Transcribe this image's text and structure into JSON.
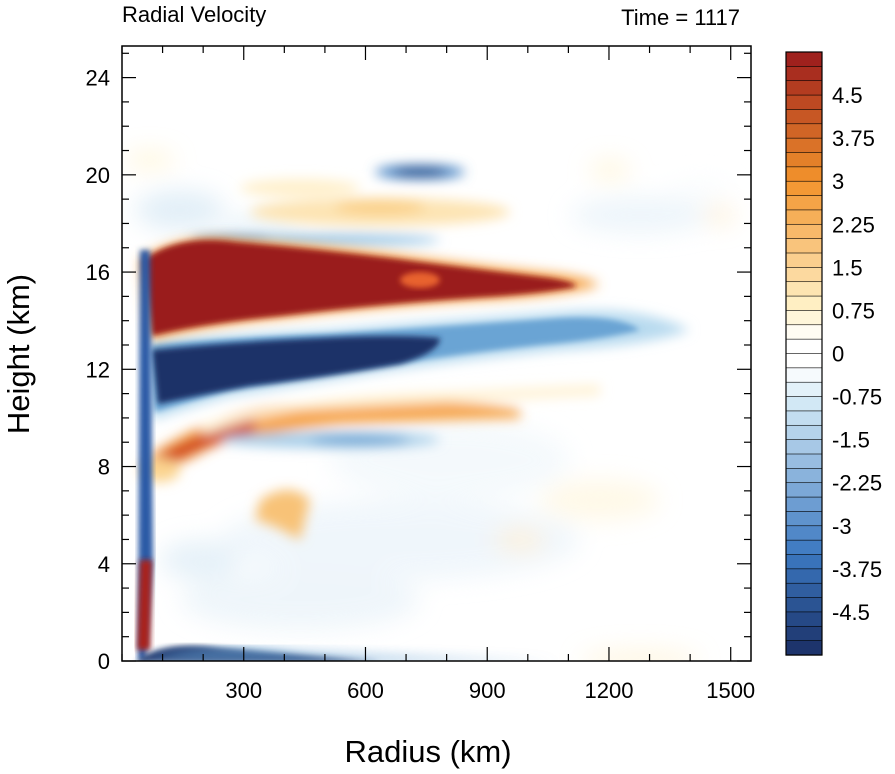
{
  "chart_data": {
    "type": "heatmap",
    "title_left": "Radial Velocity",
    "title_right": "Time = 1117",
    "xlabel": "Radius (km)",
    "ylabel": "Height (km)",
    "xlim": [
      0,
      1550
    ],
    "ylim": [
      0,
      25.3
    ],
    "x_ticks": [
      300,
      600,
      900,
      1200,
      1500
    ],
    "y_ticks": [
      0,
      4,
      8,
      12,
      16,
      20,
      24
    ],
    "colorbar": {
      "min": -5.25,
      "max": 5.25,
      "step": 0.25,
      "labels": [
        "4.5",
        "3.75",
        "3",
        "2.25",
        "1.5",
        "0.75",
        "0",
        "-0.75",
        "-1.5",
        "-2.25",
        "-3",
        "-3.75",
        "-4.5"
      ],
      "label_values": [
        4.5,
        3.75,
        3,
        2.25,
        1.5,
        0.75,
        0,
        -0.75,
        -1.5,
        -2.25,
        -3,
        -3.75,
        -4.5
      ],
      "colors": {
        "neg_dark": "#1b2f66",
        "neg_mid": "#3b78c0",
        "neg_light": "#d6ebf6",
        "zero": "#ffffff",
        "pos_light": "#fff2c8",
        "pos_mid": "#f3942c",
        "pos_dark": "#9a1a1c"
      }
    },
    "features": [
      {
        "sign": "positive",
        "desc": "strong outflow",
        "r_range": [
          40,
          1150
        ],
        "z_range": [
          13.5,
          17.3
        ],
        "peak": 5.25
      },
      {
        "sign": "negative",
        "desc": "inflow below outflow",
        "r_range": [
          60,
          1150
        ],
        "z_range": [
          11,
          13.8
        ],
        "peak": -5.25
      },
      {
        "sign": "positive",
        "desc": "mid-level outflow",
        "r_range": [
          60,
          800
        ],
        "z_range": [
          8,
          11
        ],
        "peak": 3.5
      },
      {
        "sign": "negative",
        "desc": "boundary-layer inflow",
        "r_range": [
          40,
          700
        ],
        "z_range": [
          0,
          1.3
        ],
        "peak": -5.25
      },
      {
        "sign": "positive",
        "desc": "low-level eyewall outflow",
        "r_range": [
          40,
          80
        ],
        "z_range": [
          0.5,
          4
        ],
        "peak": 5.0
      },
      {
        "sign": "negative",
        "desc": "upper-level band",
        "r_range": [
          550,
          800
        ],
        "z_range": [
          19.8,
          20.6
        ],
        "peak": -3.0
      },
      {
        "sign": "positive",
        "desc": "upper-level band",
        "r_range": [
          450,
          850
        ],
        "z_range": [
          17.8,
          19.2
        ],
        "peak": 1.5
      }
    ]
  }
}
